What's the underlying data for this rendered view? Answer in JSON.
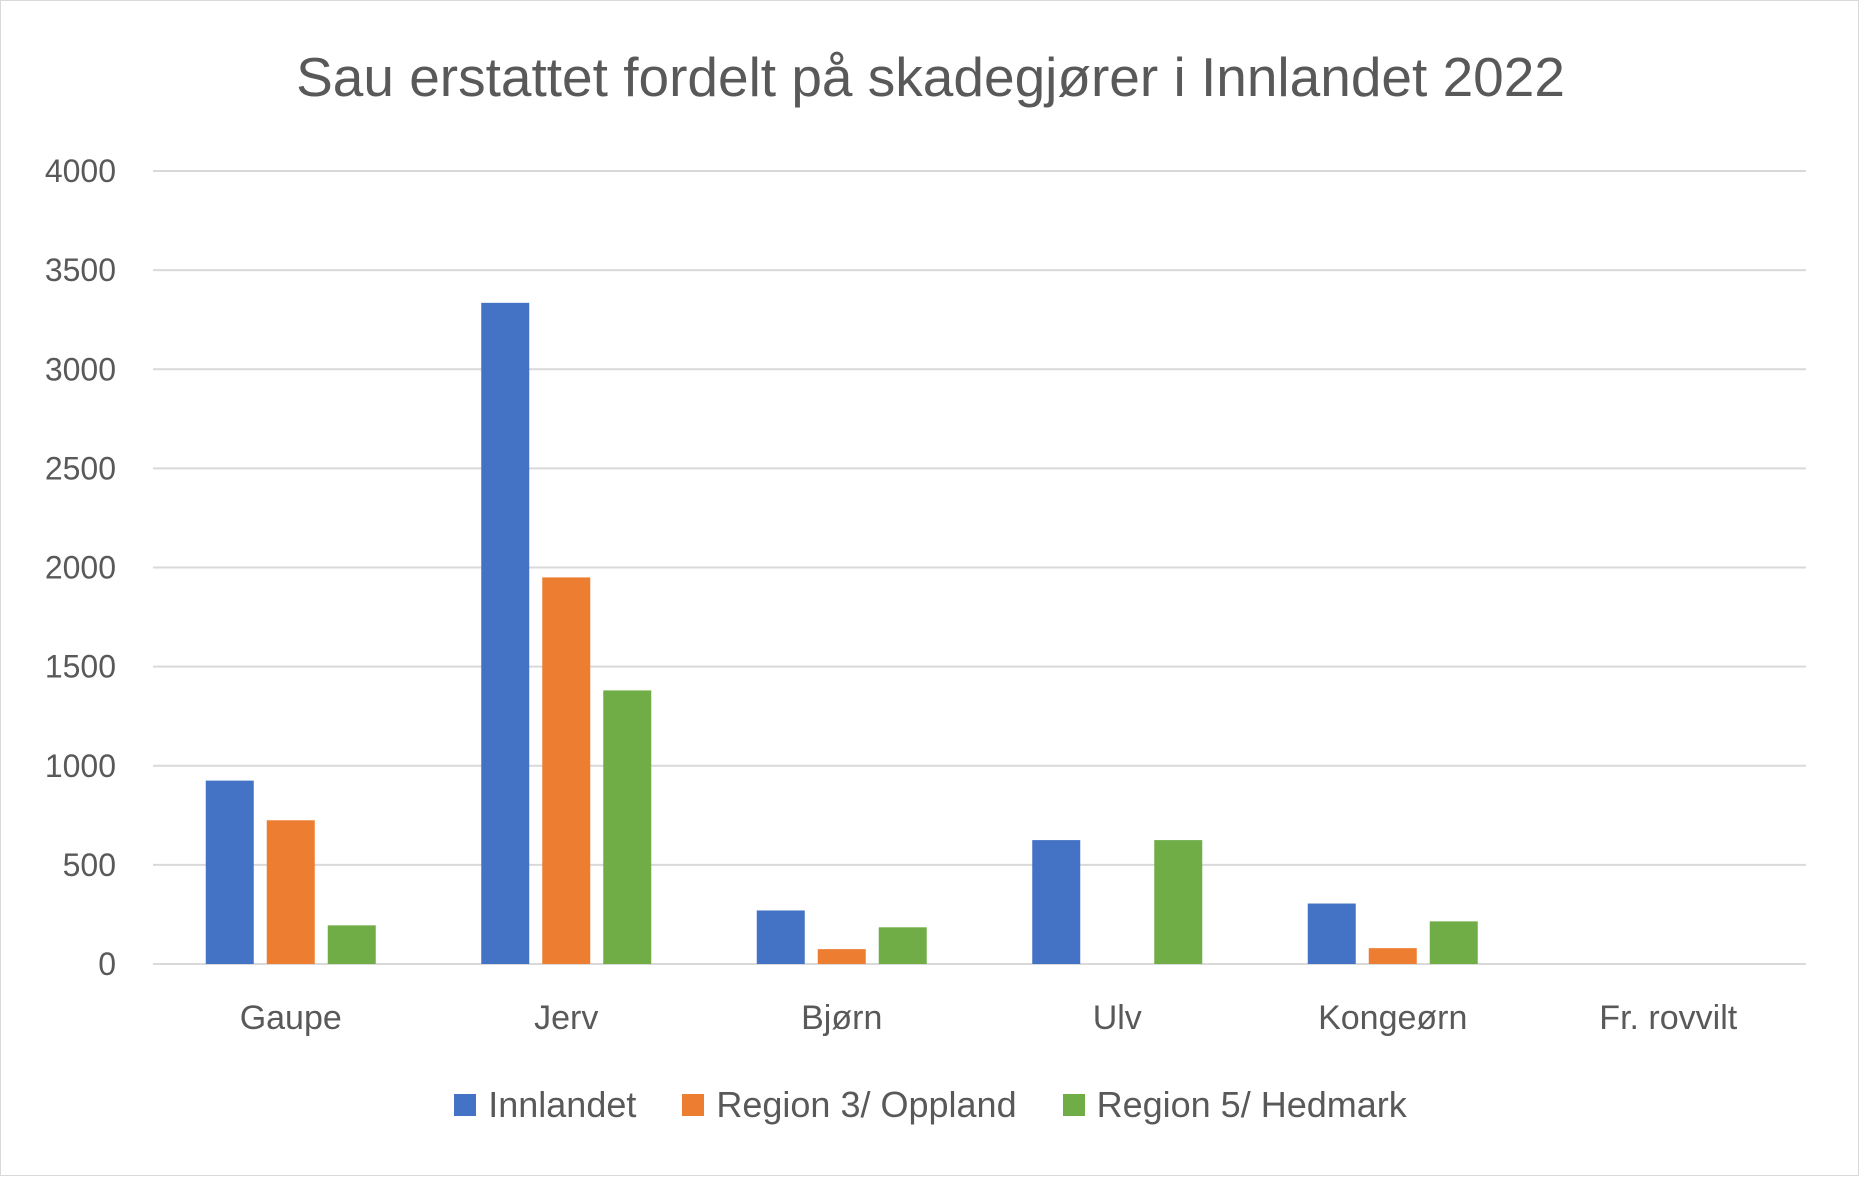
{
  "chart_data": {
    "type": "bar",
    "title": "Sau erstattet fordelt på skadegjører i Innlandet 2022",
    "xlabel": "",
    "ylabel": "",
    "categories": [
      "Gaupe",
      "Jerv",
      "Bjørn",
      "Ulv",
      "Kongeørn",
      "Fr. rovvilt"
    ],
    "series": [
      {
        "name": "Innlandet",
        "color": "#4472C4",
        "values": [
          925,
          3335,
          270,
          625,
          305,
          0
        ]
      },
      {
        "name": "Region 3/ Oppland",
        "color": "#ED7D31",
        "values": [
          725,
          1950,
          75,
          0,
          80,
          0
        ]
      },
      {
        "name": "Region 5/ Hedmark",
        "color": "#70AD47",
        "values": [
          195,
          1380,
          185,
          625,
          215,
          0
        ]
      }
    ],
    "ylim": [
      0,
      4000
    ],
    "yticks": [
      0,
      500,
      1000,
      1500,
      2000,
      2500,
      3000,
      3500,
      4000
    ],
    "grid": true,
    "legend_position": "bottom"
  }
}
